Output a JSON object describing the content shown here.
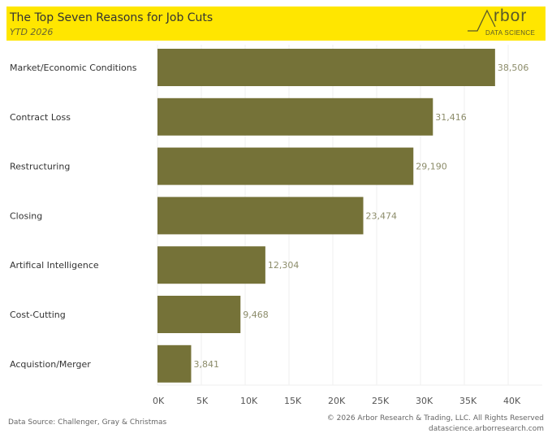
{
  "header": {
    "title": "The Top Seven Reasons for Job Cuts",
    "subtitle": "YTD 2026",
    "logo_word": "rbor",
    "logo_sub": "DATA SCIENCE",
    "logo_icon": "arbor-a-line-icon",
    "background_color": "#ffe600"
  },
  "footer": {
    "source": "Data Source: Challenger, Gray & Christmas",
    "copyright": "© 2026 Arbor Research & Trading, LLC. All Rights Reserved",
    "website": "datascience.arborresearch.com"
  },
  "chart_data": {
    "type": "bar",
    "orientation": "horizontal",
    "title": "The Top Seven Reasons for Job Cuts",
    "subtitle": "YTD 2026",
    "xlabel": "",
    "ylabel": "",
    "categories": [
      "Market/Economic Conditions",
      "Contract Loss",
      "Restructuring",
      "Closing",
      "Artifical Intelligence",
      "Cost-Cutting",
      "Acquistion/Merger"
    ],
    "values": [
      38506,
      31416,
      29190,
      23474,
      12304,
      9468,
      3841
    ],
    "value_labels": [
      "38,506",
      "31,416",
      "29,190",
      "23,474",
      "12,304",
      "9,468",
      "3,841"
    ],
    "xlim": [
      0,
      43500
    ],
    "x_ticks": [
      0,
      5000,
      10000,
      15000,
      20000,
      25000,
      30000,
      35000,
      40000
    ],
    "x_tick_labels": [
      "0K",
      "5K",
      "10K",
      "15K",
      "20K",
      "25K",
      "30K",
      "35K",
      "40K"
    ],
    "grid": true,
    "legend": "none",
    "bar_color": "#757238",
    "value_label_color": "#8c8c6a"
  }
}
